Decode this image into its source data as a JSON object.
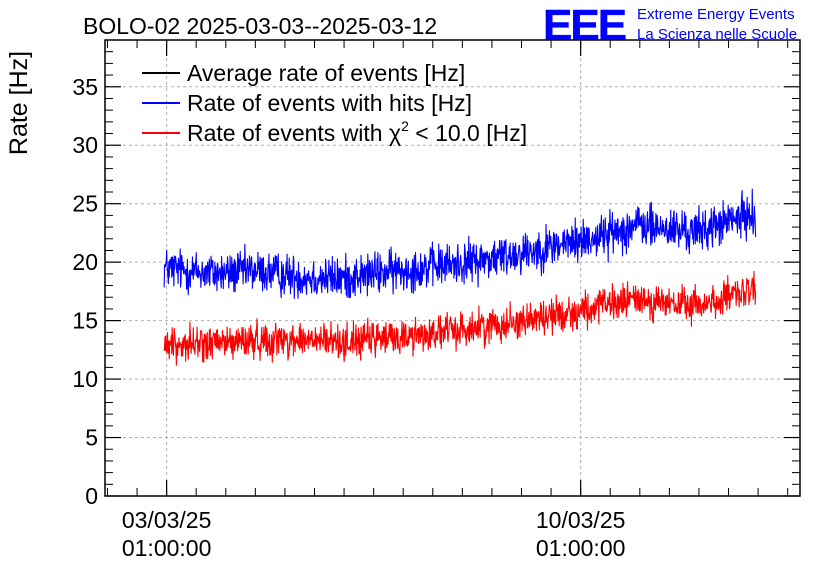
{
  "logo": {
    "letters": "EEE",
    "line1": "Extreme Energy Events",
    "line2": "La Scienza nelle Scuole",
    "color": "#0000ff"
  },
  "chart_data": {
    "type": "line",
    "title": "BOLO-02 2025-03-03--2025-03-12",
    "ylabel": "Rate [Hz]",
    "xlabel": "",
    "ylim": [
      0,
      39
    ],
    "xlim": [
      "2025-03-02 00:00:00",
      "2025-03-13 18:00:00"
    ],
    "y_ticks": [
      {
        "value": 0,
        "label": "0"
      },
      {
        "value": 5,
        "label": "5"
      },
      {
        "value": 10,
        "label": "10"
      },
      {
        "value": 15,
        "label": "15"
      },
      {
        "value": 20,
        "label": "20"
      },
      {
        "value": 25,
        "label": "25"
      },
      {
        "value": 30,
        "label": "30"
      },
      {
        "value": 35,
        "label": "35"
      }
    ],
    "x_ticks": [
      {
        "value": "2025-03-03 01:00:00",
        "label1": "03/03/25",
        "label2": "01:00:00"
      },
      {
        "value": "2025-03-10 01:00:00",
        "label1": "10/03/25",
        "label2": "01:00:00"
      }
    ],
    "grid": true,
    "legend": {
      "position": "top-left",
      "entries": [
        {
          "label": "Average rate of events [Hz]",
          "color": "#000000"
        },
        {
          "label": "Rate of events with hits [Hz]",
          "color": "#0000ff"
        },
        {
          "label_pre": "Rate of events with ",
          "label_symbol": "χ",
          "label_sup": "2",
          "label_post": " < 10.0 [Hz]",
          "color": "#ff0000"
        }
      ]
    },
    "series": [
      {
        "color": "#0000ff",
        "noise": 0.9,
        "x": [
          "2025-03-03 00:00:00",
          "2025-03-03 12:00:00",
          "2025-03-04 00:00:00",
          "2025-03-04 12:00:00",
          "2025-03-05 00:00:00",
          "2025-03-05 12:00:00",
          "2025-03-06 00:00:00",
          "2025-03-06 12:00:00",
          "2025-03-07 00:00:00",
          "2025-03-07 12:00:00",
          "2025-03-08 00:00:00",
          "2025-03-08 12:00:00",
          "2025-03-09 00:00:00",
          "2025-03-09 12:00:00",
          "2025-03-10 00:00:00",
          "2025-03-10 12:00:00",
          "2025-03-11 00:00:00",
          "2025-03-11 12:00:00",
          "2025-03-12 00:00:00",
          "2025-03-12 12:00:00",
          "2025-03-13 00:00:00"
        ],
        "y": [
          19.5,
          19.2,
          19.0,
          19.3,
          18.9,
          18.7,
          18.6,
          19.0,
          19.3,
          19.6,
          19.9,
          20.3,
          20.8,
          21.3,
          21.8,
          22.4,
          23.2,
          22.8,
          22.6,
          23.4,
          24.2
        ]
      },
      {
        "color": "#ff0000",
        "noise": 0.75,
        "x": [
          "2025-03-03 00:00:00",
          "2025-03-03 12:00:00",
          "2025-03-04 00:00:00",
          "2025-03-04 12:00:00",
          "2025-03-05 00:00:00",
          "2025-03-05 12:00:00",
          "2025-03-06 00:00:00",
          "2025-03-06 12:00:00",
          "2025-03-07 00:00:00",
          "2025-03-07 12:00:00",
          "2025-03-08 00:00:00",
          "2025-03-08 12:00:00",
          "2025-03-09 00:00:00",
          "2025-03-09 12:00:00",
          "2025-03-10 00:00:00",
          "2025-03-10 12:00:00",
          "2025-03-11 00:00:00",
          "2025-03-11 12:00:00",
          "2025-03-12 00:00:00",
          "2025-03-12 12:00:00",
          "2025-03-13 00:00:00"
        ],
        "y": [
          12.9,
          13.0,
          13.1,
          13.3,
          13.4,
          13.3,
          13.2,
          13.4,
          13.6,
          13.9,
          14.2,
          14.6,
          15.0,
          15.4,
          15.8,
          16.3,
          16.9,
          16.4,
          16.3,
          16.9,
          17.6
        ]
      }
    ]
  }
}
